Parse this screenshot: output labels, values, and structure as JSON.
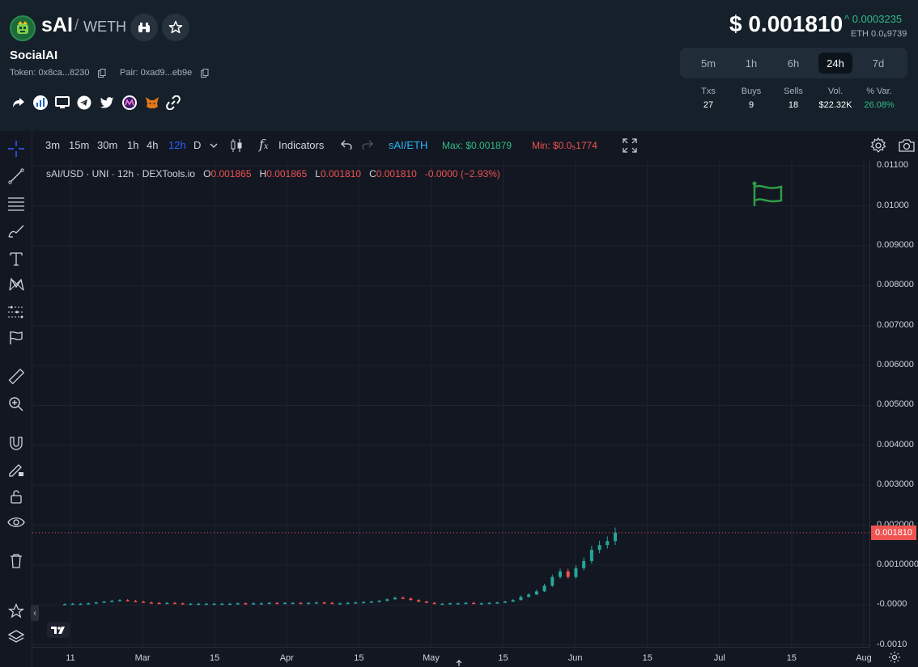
{
  "header": {
    "symbol": "sAI",
    "slash": "/",
    "quote": "WETH",
    "token_name": "SocialAI",
    "token_addr": "Token: 0x8ca...8230",
    "pair_addr": "Pair: 0xad9...eb9e",
    "price": "$ 0.001810",
    "change": "^ 0.0003235",
    "eth_price": "ETH 0.0₆9739",
    "timeframes": [
      "5m",
      "1h",
      "6h",
      "24h",
      "7d"
    ],
    "active_timeframe": "24h",
    "stats_headers": [
      "Txs",
      "Buys",
      "Sells",
      "Vol.",
      "% Var."
    ],
    "stats_values": [
      "27",
      "9",
      "18",
      "$22.32K",
      "26.08%"
    ]
  },
  "toolbar": {
    "intervals": [
      "3m",
      "15m",
      "30m",
      "1h",
      "4h",
      "12h",
      "D"
    ],
    "active_interval": "12h",
    "indicators_label": "Indicators",
    "pair_label": "sAI/ETH",
    "max_label": "Max: $0.001879",
    "min_label": "Min: $0.0₅1774"
  },
  "legend": {
    "title": "sAI/USD · UNI · 12h · DEXTools.io",
    "o_key": "O",
    "o_val": "0.001865",
    "h_key": "H",
    "h_val": "0.001865",
    "l_key": "L",
    "l_val": "0.001810",
    "c_key": "C",
    "c_val": "0.001810",
    "delta": "-0.0000 (−2.93%)"
  },
  "last_price_label": "0.001810",
  "colors": {
    "up": "#26a69a",
    "down": "#ef5350",
    "accent": "#2962ff",
    "bg": "#131722"
  },
  "chart_data": {
    "type": "candlestick",
    "y_tick_labels": [
      "0.01100",
      "0.01000",
      "0.009000",
      "0.008000",
      "0.007000",
      "0.006000",
      "0.005000",
      "0.004000",
      "0.003000",
      "0.002000",
      "0.0010000",
      "-0.0000",
      "-0.0010"
    ],
    "y_tick_values": [
      0.011,
      0.01,
      0.009,
      0.008,
      0.007,
      0.006,
      0.005,
      0.004,
      0.003,
      0.002,
      0.001,
      0.0,
      -0.001
    ],
    "x_tick_labels": [
      "11",
      "Mar",
      "15",
      "Apr",
      "15",
      "May",
      "15",
      "Jun",
      "15",
      "Jul",
      "15",
      "Aug"
    ],
    "ylim": [
      -0.00105,
      0.01115
    ],
    "last_price": 0.00181,
    "grid": true,
    "series": [
      {
        "x": 0,
        "values": [
          2e-05,
          3e-05,
          3e-05,
          4e-05,
          6e-05,
          8e-05,
          0.0001,
          0.00012,
          0.0001,
          8e-05,
          6e-05,
          5e-05,
          4e-05,
          5e-05,
          4e-05,
          3e-05,
          3e-05,
          3e-05,
          3e-05,
          3e-05,
          3e-05,
          3e-05,
          4e-05,
          3e-05,
          4e-05,
          4e-05,
          5e-05,
          4e-05,
          5e-05,
          5e-05,
          4e-05,
          5e-05,
          6e-05,
          5e-05,
          4e-05,
          4e-05,
          5e-05,
          6e-05,
          7e-05,
          8e-05,
          0.0001,
          0.00014,
          0.00018,
          0.00016,
          0.00012,
          8e-05,
          5e-05,
          3e-05,
          3e-05,
          4e-05,
          4e-05,
          5e-05,
          4e-05,
          4e-05,
          5e-05,
          6e-05,
          8e-05,
          0.00012,
          0.0002,
          0.00026,
          0.00034,
          0.00048,
          0.0007,
          0.00084,
          0.0007,
          0.00092,
          0.0011,
          0.00138,
          0.0015,
          0.0016,
          0.00181
        ]
      }
    ]
  }
}
